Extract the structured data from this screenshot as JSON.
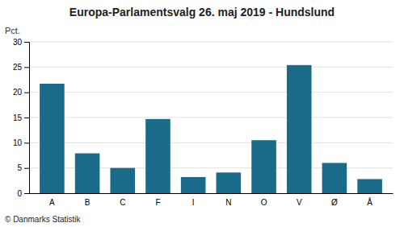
{
  "chart_data": {
    "type": "bar",
    "title": "Europa-Parlamentsvalg 26. maj 2019 - Hundslund",
    "ylabel": "Pct.",
    "footer": "© Danmarks Statistik",
    "categories": [
      "A",
      "B",
      "C",
      "F",
      "I",
      "N",
      "O",
      "V",
      "Ø",
      "Å"
    ],
    "values": [
      21.7,
      7.9,
      5.0,
      14.7,
      3.2,
      4.1,
      10.5,
      25.4,
      6.0,
      2.8
    ],
    "color": "#1a6b8a",
    "ylim": [
      0,
      30
    ],
    "yticks": [
      0,
      5,
      10,
      15,
      20,
      25,
      30
    ],
    "grid": true
  }
}
